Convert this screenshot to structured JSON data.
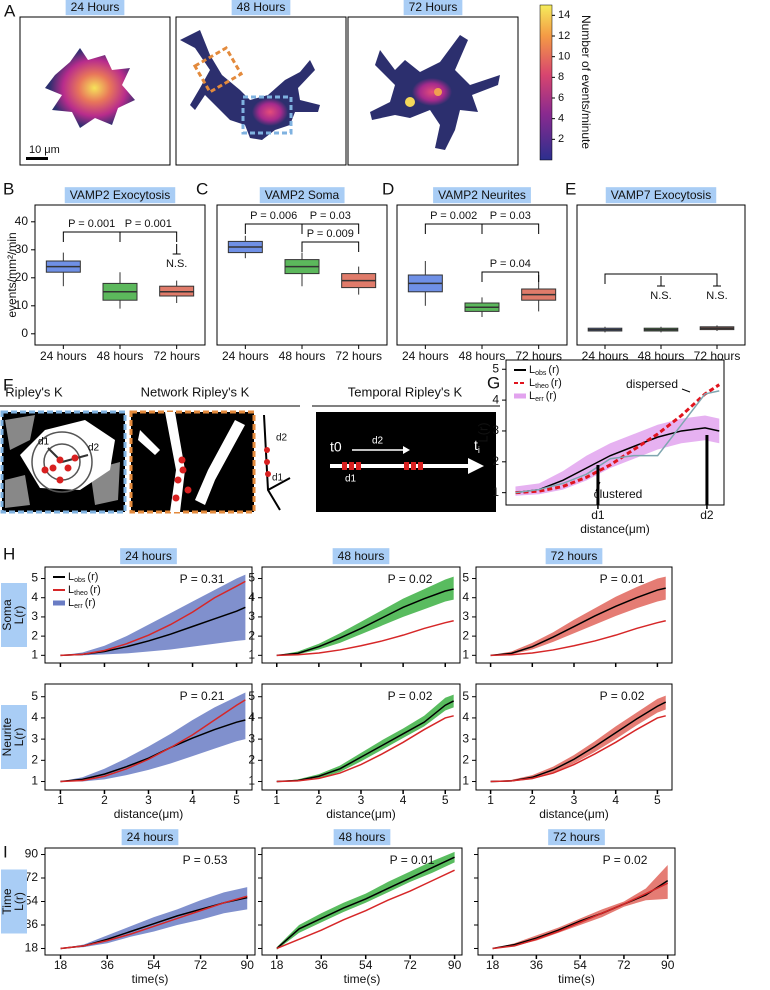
{
  "panel_labels": [
    "A",
    "B",
    "C",
    "D",
    "E",
    "F",
    "G",
    "H",
    "I"
  ],
  "panel_a": {
    "images": [
      {
        "title": "24 Hours"
      },
      {
        "title": "48 Hours"
      },
      {
        "title": "72 Hours"
      }
    ],
    "scale_bar": "10 μm",
    "colorbar": {
      "label": "Number of events/minute",
      "lim": [
        0,
        15
      ],
      "ticks": [
        2,
        4,
        6,
        8,
        10,
        12,
        14
      ]
    }
  },
  "panel_f": {
    "titles": [
      "Ripley's K",
      "Network Ripley's K",
      "Temporal Ripley's K"
    ],
    "labels": [
      "d1",
      "d2",
      "d2",
      "d1",
      "t0",
      "d2",
      "d1"
    ],
    "t_i": {
      "base": "t",
      "sub": "i"
    }
  },
  "chart_data": [
    {
      "type": "box",
      "title": "VAMP2 Exocytosis",
      "ylabel": "events/mm²/min",
      "categories": [
        "24 hours",
        "48 hours",
        "72 hours"
      ],
      "series": [
        {
          "color": "#6f90e6",
          "whislo": 17,
          "q1": 22,
          "med": 24,
          "q3": 26,
          "whishi": 29
        },
        {
          "color": "#5cb85c",
          "whislo": 9,
          "q1": 12,
          "med": 15,
          "q3": 18,
          "whishi": 22
        },
        {
          "color": "#e07b6a",
          "whislo": 11,
          "q1": 13.5,
          "med": 15,
          "q3": 17,
          "whishi": 19
        }
      ],
      "ylim": [
        -4,
        46
      ],
      "yticks": [
        0,
        10,
        20,
        30,
        40
      ],
      "annotations": [
        "P = 0.001",
        "P = 0.001",
        "N.S."
      ]
    },
    {
      "type": "box",
      "title": "VAMP2 Soma",
      "categories": [
        "24 hours",
        "48 hours",
        "72 hours"
      ],
      "series": [
        {
          "color": "#6f90e6",
          "whislo": 27,
          "q1": 29,
          "med": 31,
          "q3": 33,
          "whishi": 35
        },
        {
          "color": "#5cb85c",
          "whislo": 17,
          "q1": 21.5,
          "med": 24,
          "q3": 26.5,
          "whishi": 29
        },
        {
          "color": "#e07b6a",
          "whislo": 14,
          "q1": 16.5,
          "med": 19,
          "q3": 21.5,
          "whishi": 24
        }
      ],
      "ylim": [
        -4,
        46
      ],
      "annotations": [
        "P = 0.006",
        "P = 0.03",
        "P = 0.009"
      ]
    },
    {
      "type": "box",
      "title": "VAMP2 Neurites",
      "categories": [
        "24 hours",
        "48 hours",
        "72 hours"
      ],
      "series": [
        {
          "color": "#6f90e6",
          "whislo": 10,
          "q1": 15,
          "med": 18,
          "q3": 21,
          "whishi": 26
        },
        {
          "color": "#5cb85c",
          "whislo": 6,
          "q1": 8,
          "med": 9.5,
          "q3": 11,
          "whishi": 13
        },
        {
          "color": "#e07b6a",
          "whislo": 8,
          "q1": 12,
          "med": 14,
          "q3": 16,
          "whishi": 21
        }
      ],
      "ylim": [
        -4,
        46
      ],
      "annotations": [
        "P = 0.002",
        "P = 0.03",
        "P = 0.04"
      ]
    },
    {
      "type": "box",
      "title": "VAMP7 Exocytosis",
      "categories": [
        "24 hours",
        "48 hours",
        "72 hours"
      ],
      "series": [
        {
          "color": "#6f90e6",
          "whislo": 0.5,
          "q1": 1,
          "med": 1.5,
          "q3": 2,
          "whishi": 2.5
        },
        {
          "color": "#5cb85c",
          "whislo": 0.5,
          "q1": 1,
          "med": 1.5,
          "q3": 2,
          "whishi": 2.5
        },
        {
          "color": "#e07b6a",
          "whislo": 1,
          "q1": 1.5,
          "med": 2,
          "q3": 2.5,
          "whishi": 3
        }
      ],
      "ylim": [
        -4,
        46
      ],
      "annotations": [
        "N.S.",
        "N.S."
      ]
    },
    {
      "type": "line",
      "ylabel": "L(r)",
      "xlabel": "distance(μm)",
      "annotations": [
        "dispersed",
        "clustered"
      ],
      "x": [
        1,
        1.5,
        2,
        2.5,
        3,
        3.5,
        4,
        4.5,
        5,
        5.3
      ],
      "xlim": [
        0.8,
        5.4
      ],
      "ylim": [
        0.6,
        5.3
      ],
      "xticks": [
        {
          "value": 2.74,
          "label": "d1"
        },
        {
          "value": 5.04,
          "label": "d2"
        }
      ],
      "yticks": [
        1,
        2,
        3,
        4,
        5
      ],
      "series": [
        {
          "name": "L",
          "sub": "obs",
          "arg": "(r)",
          "color": "#000000",
          "values": [
            1,
            1.1,
            1.4,
            1.8,
            2.2,
            2.5,
            2.8,
            3.0,
            3.1,
            3.0
          ]
        },
        {
          "name": "L",
          "sub": "theo",
          "arg": "(r)",
          "color": "#e0141e",
          "dashed": true,
          "values": [
            1,
            1.05,
            1.2,
            1.5,
            1.9,
            2.4,
            2.9,
            3.5,
            4.2,
            4.5
          ]
        },
        {
          "name": "L",
          "sub": "err",
          "arg": "(r)",
          "color": "#e2a3ee",
          "lower": [
            0.9,
            0.95,
            1.1,
            1.4,
            1.8,
            2.1,
            2.4,
            2.6,
            2.7,
            2.6
          ],
          "upper": [
            1.2,
            1.3,
            1.7,
            2.2,
            2.6,
            2.9,
            3.2,
            3.4,
            3.5,
            3.4
          ]
        },
        {
          "color": "#7fa6b0",
          "values": [
            1,
            1.1,
            1.3,
            1.6,
            2.1,
            2.2,
            2.2,
            3.2,
            4.2,
            4.3
          ]
        }
      ]
    },
    {
      "type": "line",
      "title": "24 hours",
      "ylabel": [
        "Soma",
        "L(r)"
      ],
      "annotation": "P = 0.31",
      "xtick_labels": false,
      "x": [
        1,
        1.5,
        2,
        2.5,
        3,
        3.5,
        4,
        4.5,
        5,
        5.2
      ],
      "xlim": [
        0.65,
        5.35
      ],
      "ylim": [
        0.6,
        5.6
      ],
      "xticks": [
        1,
        2,
        3,
        4,
        5
      ],
      "yticks": [
        1,
        2,
        3,
        4,
        5
      ],
      "series": [
        {
          "name": "L",
          "sub": "obs",
          "arg": "(r)",
          "color": "#000000",
          "values": [
            1,
            1.05,
            1.2,
            1.45,
            1.75,
            2.1,
            2.5,
            2.9,
            3.3,
            3.5
          ]
        },
        {
          "name": "L",
          "sub": "theo",
          "arg": "(r)",
          "color": "#d62728",
          "values": [
            1,
            1.05,
            1.25,
            1.6,
            2.05,
            2.6,
            3.25,
            4,
            4.6,
            4.85
          ]
        },
        {
          "name": "L",
          "sub": "err",
          "arg": "(r)",
          "color": "#6a7cc4",
          "lower": [
            1,
            1,
            1.05,
            1.1,
            1.2,
            1.3,
            1.45,
            1.6,
            1.75,
            1.8
          ],
          "upper": [
            1,
            1.15,
            1.5,
            2,
            2.6,
            3.2,
            3.8,
            4.4,
            5,
            5.2
          ]
        }
      ]
    },
    {
      "type": "line",
      "title": "48 hours",
      "annotation": "P = 0.02",
      "xtick_labels": false,
      "x": [
        1,
        1.5,
        2,
        2.5,
        3,
        3.5,
        4,
        4.5,
        5,
        5.2
      ],
      "xlim": [
        0.65,
        5.35
      ],
      "ylim": [
        0.6,
        5.6
      ],
      "xticks": [
        1,
        2,
        3,
        4,
        5
      ],
      "yticks": [
        1,
        2,
        3,
        4,
        5
      ],
      "series": [
        {
          "color": "#000000",
          "values": [
            1,
            1.1,
            1.45,
            1.9,
            2.4,
            2.95,
            3.5,
            3.95,
            4.35,
            4.45
          ]
        },
        {
          "color": "#d62728",
          "values": [
            1,
            1.03,
            1.12,
            1.28,
            1.5,
            1.75,
            2.05,
            2.4,
            2.7,
            2.8
          ]
        },
        {
          "color": "#3cb043",
          "lower": [
            1,
            1.05,
            1.3,
            1.65,
            2.1,
            2.55,
            3,
            3.4,
            3.8,
            3.9
          ],
          "upper": [
            1,
            1.2,
            1.6,
            2.15,
            2.75,
            3.35,
            3.95,
            4.45,
            4.95,
            5.1
          ]
        }
      ]
    },
    {
      "type": "line",
      "title": "72 hours",
      "annotation": "P = 0.01",
      "xtick_labels": false,
      "x": [
        1,
        1.5,
        2,
        2.5,
        3,
        3.5,
        4,
        4.5,
        5,
        5.2
      ],
      "xlim": [
        0.65,
        5.35
      ],
      "ylim": [
        0.6,
        5.6
      ],
      "xticks": [
        1,
        2,
        3,
        4,
        5
      ],
      "yticks": [
        1,
        2,
        3,
        4,
        5
      ],
      "series": [
        {
          "color": "#000000",
          "values": [
            1,
            1.1,
            1.45,
            1.95,
            2.5,
            3.05,
            3.55,
            4,
            4.4,
            4.5
          ]
        },
        {
          "color": "#d62728",
          "values": [
            1,
            1.03,
            1.12,
            1.28,
            1.5,
            1.75,
            2.05,
            2.4,
            2.7,
            2.8
          ]
        },
        {
          "color": "#e0655c",
          "lower": [
            1,
            1.05,
            1.3,
            1.7,
            2.15,
            2.6,
            3.05,
            3.45,
            3.8,
            3.9
          ],
          "upper": [
            1,
            1.2,
            1.65,
            2.2,
            2.85,
            3.45,
            4.05,
            4.55,
            5,
            5.1
          ]
        }
      ]
    },
    {
      "type": "line",
      "ylabel": [
        "Neurite",
        "L(r)"
      ],
      "xlabel": "distance(μm)",
      "annotation": "P = 0.21",
      "x": [
        1,
        1.5,
        2,
        2.5,
        3,
        3.5,
        4,
        4.5,
        5,
        5.2
      ],
      "xlim": [
        0.65,
        5.35
      ],
      "ylim": [
        0.6,
        5.6
      ],
      "xticks": [
        1,
        2,
        3,
        4,
        5
      ],
      "yticks": [
        1,
        2,
        3,
        4,
        5
      ],
      "series": [
        {
          "color": "#000000",
          "values": [
            1,
            1.1,
            1.35,
            1.7,
            2.1,
            2.6,
            3.05,
            3.45,
            3.8,
            3.9
          ]
        },
        {
          "color": "#d62728",
          "values": [
            1,
            1.05,
            1.25,
            1.6,
            2.05,
            2.6,
            3.2,
            3.9,
            4.6,
            4.85
          ]
        },
        {
          "color": "#6a7cc4",
          "lower": [
            1,
            1,
            1.1,
            1.3,
            1.55,
            1.85,
            2.2,
            2.55,
            2.9,
            3
          ],
          "upper": [
            1,
            1.2,
            1.6,
            2.1,
            2.65,
            3.25,
            3.9,
            4.5,
            5,
            5.2
          ]
        }
      ]
    },
    {
      "type": "line",
      "xlabel": "distance(μm)",
      "annotation": "P = 0.02",
      "x": [
        1,
        1.5,
        2,
        2.5,
        3,
        3.5,
        4,
        4.5,
        5,
        5.2
      ],
      "xlim": [
        0.65,
        5.35
      ],
      "ylim": [
        0.6,
        5.6
      ],
      "xticks": [
        1,
        2,
        3,
        4,
        5
      ],
      "yticks": [
        1,
        2,
        3,
        4,
        5
      ],
      "series": [
        {
          "color": "#000000",
          "values": [
            1,
            1.05,
            1.25,
            1.6,
            2.15,
            2.7,
            3.25,
            3.8,
            4.6,
            4.8
          ]
        },
        {
          "color": "#d62728",
          "values": [
            1,
            1.03,
            1.15,
            1.4,
            1.8,
            2.3,
            2.85,
            3.45,
            4,
            4.1
          ]
        },
        {
          "color": "#3cb043",
          "lower": [
            1,
            1,
            1.15,
            1.45,
            1.95,
            2.5,
            3.05,
            3.6,
            4.35,
            4.5
          ],
          "upper": [
            1,
            1.1,
            1.35,
            1.75,
            2.35,
            2.95,
            3.5,
            4.1,
            4.95,
            5.1
          ]
        }
      ]
    },
    {
      "type": "line",
      "xlabel": "distance(μm)",
      "annotation": "P = 0.02",
      "x": [
        1,
        1.5,
        2,
        2.5,
        3,
        3.5,
        4,
        4.5,
        5,
        5.2
      ],
      "xlim": [
        0.65,
        5.35
      ],
      "ylim": [
        0.6,
        5.6
      ],
      "xticks": [
        1,
        2,
        3,
        4,
        5
      ],
      "yticks": [
        1,
        2,
        3,
        4,
        5
      ],
      "series": [
        {
          "color": "#000000",
          "values": [
            1,
            1.03,
            1.2,
            1.55,
            2.05,
            2.65,
            3.3,
            3.95,
            4.55,
            4.75
          ]
        },
        {
          "color": "#d62728",
          "values": [
            1,
            1.03,
            1.15,
            1.4,
            1.8,
            2.3,
            2.85,
            3.45,
            4,
            4.1
          ]
        },
        {
          "color": "#e0655c",
          "lower": [
            1,
            1,
            1.1,
            1.4,
            1.85,
            2.4,
            3,
            3.65,
            4.25,
            4.4
          ],
          "upper": [
            1,
            1.08,
            1.3,
            1.7,
            2.25,
            2.9,
            3.6,
            4.25,
            4.9,
            5.05
          ]
        }
      ]
    },
    {
      "type": "line",
      "title": "24 hours",
      "ylabel": [
        "Time",
        "L(r)"
      ],
      "xlabel": "time(s)",
      "annotation": "P = 0.53",
      "x": [
        18,
        27,
        36,
        45,
        54,
        63,
        72,
        81,
        90
      ],
      "xlim": [
        12,
        93
      ],
      "ylim": [
        13,
        95
      ],
      "xticks": [
        18,
        36,
        54,
        72,
        90
      ],
      "yticks": [
        18,
        36,
        54,
        72,
        90
      ],
      "series": [
        {
          "color": "#000000",
          "values": [
            18,
            20,
            25,
            31,
            37,
            43,
            48,
            53,
            57
          ]
        },
        {
          "color": "#d62728",
          "values": [
            18,
            20,
            24,
            29,
            35,
            41,
            47,
            53,
            58
          ]
        },
        {
          "color": "#6a7cc4",
          "lower": [
            18,
            19,
            22,
            27,
            31,
            36,
            40,
            45,
            48
          ],
          "upper": [
            18,
            21,
            28,
            35,
            42,
            48,
            55,
            61,
            65
          ]
        }
      ]
    },
    {
      "type": "line",
      "title": "48 hours",
      "xlabel": "time(s)",
      "annotation": "P = 0.01",
      "ytick_labels": false,
      "x": [
        18,
        27,
        36,
        45,
        54,
        63,
        72,
        81,
        90
      ],
      "xlim": [
        12,
        93
      ],
      "ylim": [
        13,
        95
      ],
      "xticks": [
        18,
        36,
        54,
        72,
        90
      ],
      "yticks": [
        18,
        36,
        54,
        72,
        90
      ],
      "series": [
        {
          "color": "#000000",
          "values": [
            18,
            33,
            41,
            49,
            56,
            64,
            72,
            80,
            88
          ]
        },
        {
          "color": "#d62728",
          "values": [
            18,
            25,
            32,
            40,
            47,
            55,
            62,
            70,
            78
          ]
        },
        {
          "color": "#3cb043",
          "lower": [
            17,
            30,
            38,
            46,
            53,
            61,
            69,
            76,
            84
          ],
          "upper": [
            19,
            36,
            45,
            53,
            60,
            69,
            77,
            85,
            92
          ]
        }
      ]
    },
    {
      "type": "line",
      "title": "72 hours",
      "xlabel": "time(s)",
      "annotation": "P = 0.02",
      "ytick_labels": false,
      "x": [
        18,
        27,
        36,
        45,
        54,
        63,
        72,
        81,
        90
      ],
      "xlim": [
        12,
        93
      ],
      "ylim": [
        13,
        95
      ],
      "xticks": [
        18,
        36,
        54,
        72,
        90
      ],
      "yticks": [
        18,
        36,
        54,
        72,
        90
      ],
      "series": [
        {
          "color": "#000000",
          "values": [
            18,
            21,
            26,
            32,
            39,
            45,
            52,
            59,
            70
          ]
        },
        {
          "color": "#d62728",
          "values": [
            18,
            20,
            25,
            31,
            38,
            45,
            52,
            60,
            68
          ]
        },
        {
          "color": "#e0655c",
          "lower": [
            18,
            20,
            24,
            30,
            36,
            42,
            50,
            55,
            56
          ],
          "upper": [
            18,
            22,
            28,
            34,
            41,
            48,
            54,
            64,
            82
          ]
        }
      ]
    }
  ]
}
